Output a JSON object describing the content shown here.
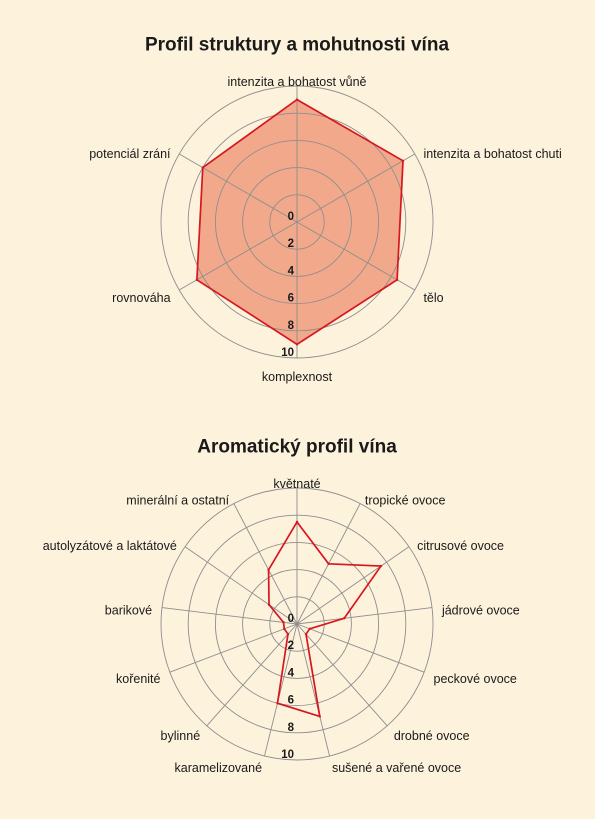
{
  "page": {
    "background": "#fdf2dc"
  },
  "chart_data": [
    {
      "type": "radar",
      "title": "Profil struktury a mohutnosti vína",
      "categories": [
        "intenzita a bohatost vůně",
        "intenzita a bohatost chuti",
        "tělo",
        "komplexnost",
        "rovnováha",
        "potenciál zrání"
      ],
      "values": [
        9,
        9,
        8.5,
        9,
        8.5,
        8
      ],
      "rlim": [
        0,
        10
      ],
      "ticks": [
        0,
        2,
        4,
        6,
        8,
        10
      ],
      "grid": true,
      "filled": true,
      "fill_color": "#f2a98b",
      "line_color": "#d7161f",
      "grid_color": "#8e8e8e"
    },
    {
      "type": "radar",
      "title": "Aromatický profil vína",
      "categories": [
        "květnaté",
        "tropické ovoce",
        "citrusové ovoce",
        "jádrové ovoce",
        "peckové ovoce",
        "drobné ovoce",
        "sušené a vařené ovoce",
        "karamelizované",
        "bylinné",
        "kořenité",
        "barikové",
        "autolyzátové a laktátové",
        "minerální a ostatní"
      ],
      "values": [
        7.5,
        5,
        7.5,
        3.5,
        1,
        1,
        7,
        6,
        1,
        1,
        1,
        2.5,
        4.5
      ],
      "rlim": [
        0,
        10
      ],
      "ticks": [
        0,
        2,
        4,
        6,
        8,
        10
      ],
      "grid": true,
      "filled": false,
      "line_color": "#d7161f",
      "grid_color": "#8e8e8e"
    }
  ]
}
